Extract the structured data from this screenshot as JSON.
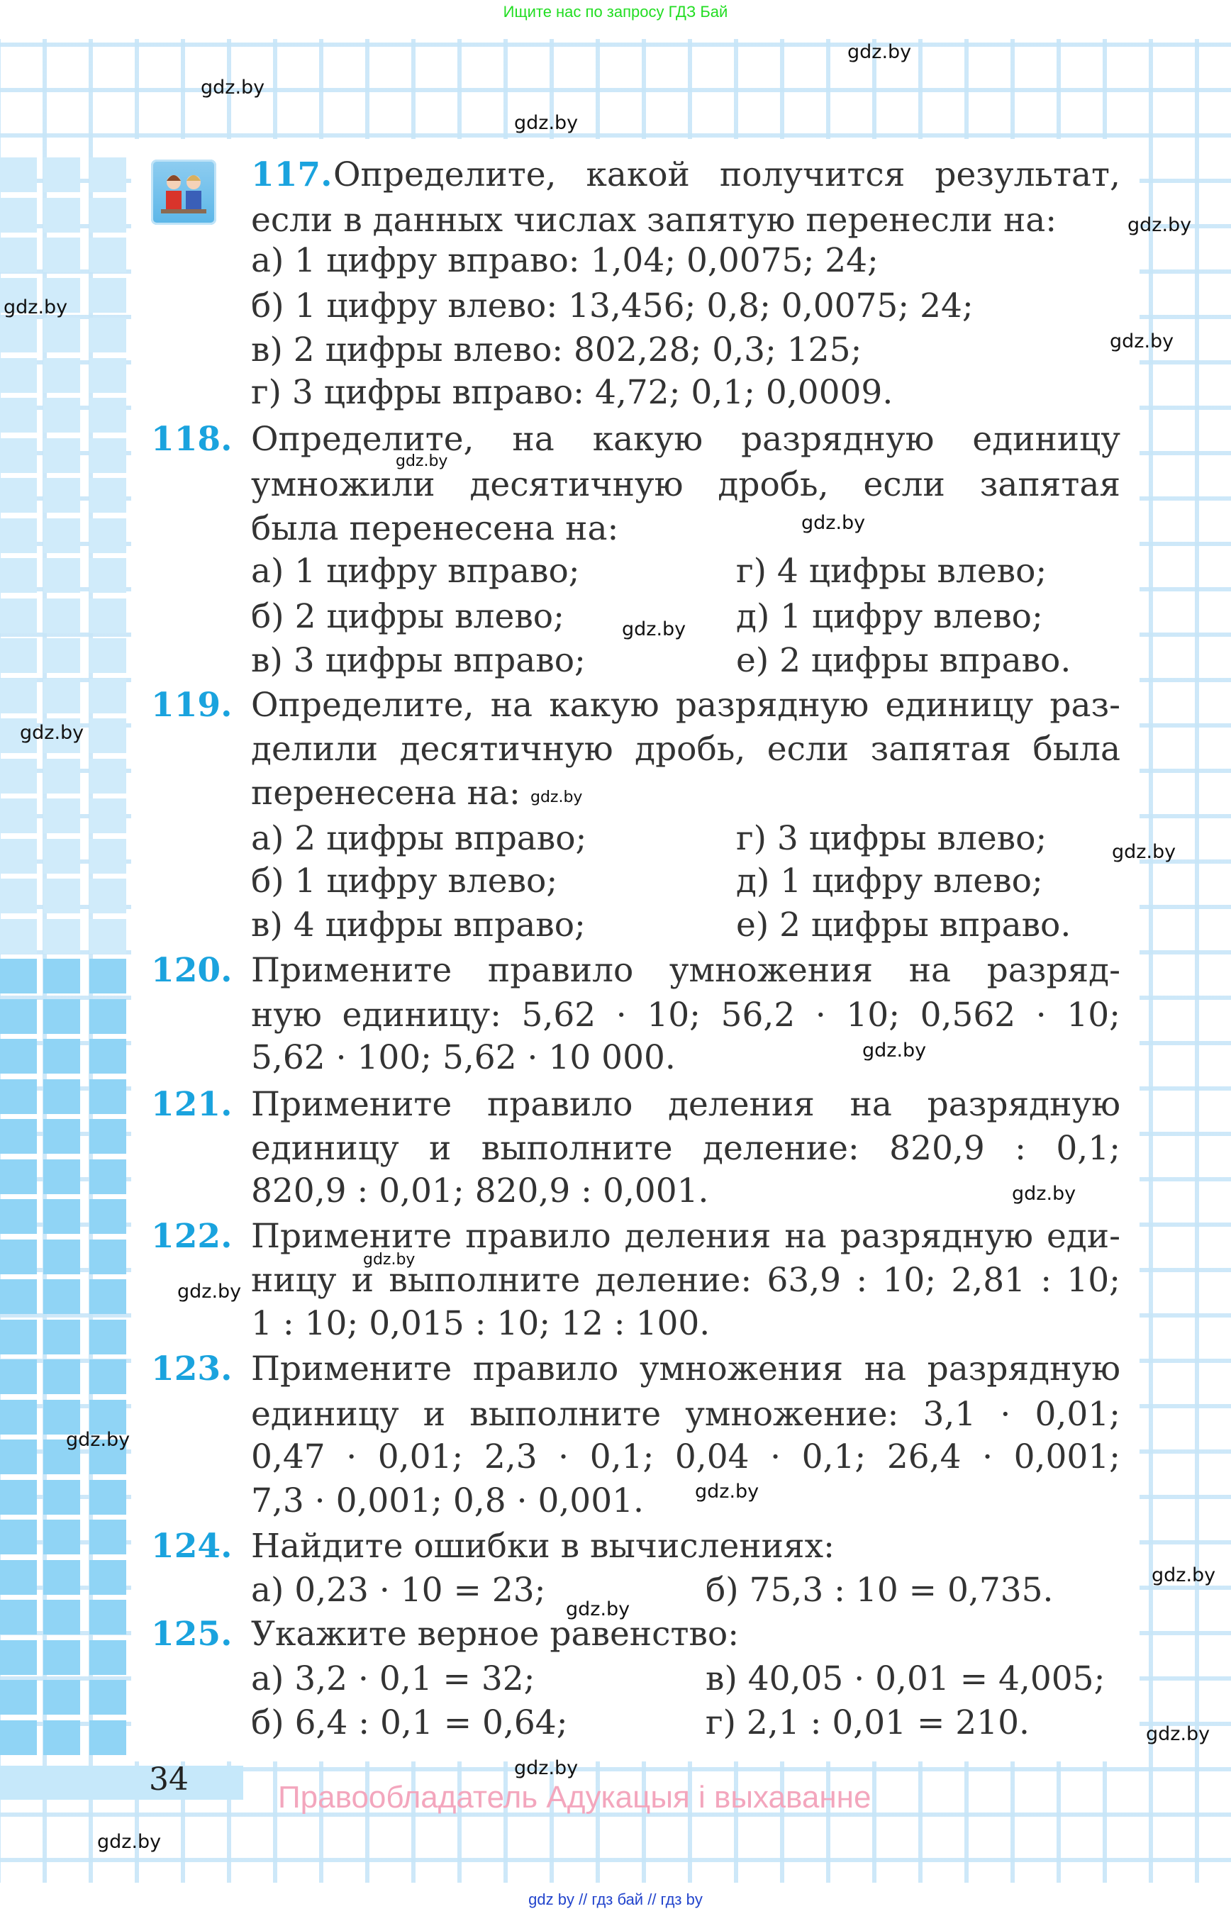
{
  "header": {
    "promo": "Ищите нас по запросу ГДЗ Бай"
  },
  "footer": {
    "page_number": "34",
    "rights": "Правообладатель Адукацыя і выхаванне",
    "links": "gdz by  //  гдз бай  //  гдз by"
  },
  "watermark": "gdz.by",
  "colors": {
    "task_number": "#1aa3de",
    "text": "#333333",
    "grid": "#c8e6f8",
    "blue_light": "#d0ebfa",
    "blue_dark": "#90d4f5",
    "promo": "#22dd22",
    "rights": "#f3a6bd",
    "footer_links": "#2244cc"
  },
  "tasks": [
    {
      "number": "117.",
      "lines": [
        "Определите, какой получится результат,",
        "если в данных числах запятую перенесли на:"
      ],
      "options": [
        "а) 1 цифру вправо: 1,04; 0,0075; 24;",
        "б) 1 цифру влево: 13,456; 0,8; 0,0075; 24;",
        "в) 2 цифры влево: 802,28; 0,3; 125;",
        "г) 3 цифры вправо: 4,72; 0,1; 0,0009."
      ]
    },
    {
      "number": "118.",
      "lines": [
        "Определите, на какую разрядную единицу",
        "умножили десятичную дробь, если запятая",
        "была перенесена на:"
      ],
      "options": [
        "а) 1 цифру вправо;",
        "б) 2 цифры влево;",
        "в) 3 цифры вправо;",
        "г) 4 цифры влево;",
        "д) 1 цифру влево;",
        "е) 2 цифры вправо."
      ]
    },
    {
      "number": "119.",
      "lines": [
        "Определите, на какую разрядную единицу раз-",
        "делили десятичную дробь, если запятая была",
        "перенесена на:"
      ],
      "options": [
        "а) 2 цифры вправо;",
        "б) 1 цифру влево;",
        "в) 4 цифры вправо;",
        "г) 3 цифры влево;",
        "д) 1 цифру влево;",
        "е) 2 цифры вправо."
      ]
    },
    {
      "number": "120.",
      "lines": [
        "Примените правило умножения на разряд-",
        "ную единицу: 5,62 · 10; 56,2 · 10; 0,562 · 10;",
        "5,62 · 100; 5,62 · 10 000."
      ]
    },
    {
      "number": "121.",
      "lines": [
        "Примените правило деления на разрядную",
        "единицу и выполните деление: 820,9 : 0,1;",
        "820,9 : 0,01; 820,9 : 0,001."
      ]
    },
    {
      "number": "122.",
      "lines": [
        "Примените правило деления на разрядную еди-",
        "ницу и выполните деление: 63,9 : 10; 2,81 : 10;",
        "1 : 10; 0,015 : 10; 12 : 100."
      ]
    },
    {
      "number": "123.",
      "lines": [
        "Примените правило умножения на разрядную",
        "единицу и выполните умножение: 3,1 · 0,01;",
        "0,47 · 0,01; 2,3 · 0,1; 0,04 · 0,1; 26,4 · 0,001;",
        "7,3 · 0,001; 0,8 · 0,001."
      ]
    },
    {
      "number": "124.",
      "lines": [
        "Найдите ошибки в вычислениях:"
      ],
      "options": [
        "а) 0,23 · 10 = 23;",
        "б) 75,3 : 10 = 0,735."
      ]
    },
    {
      "number": "125.",
      "lines": [
        "Укажите верное равенство:"
      ],
      "options": [
        "а) 3,2 · 0,1 = 32;",
        "б) 6,4 : 0,1 = 0,64;",
        "в) 40,05 · 0,01 = 4,005;",
        "г) 2,1 : 0,01 = 210."
      ]
    }
  ]
}
